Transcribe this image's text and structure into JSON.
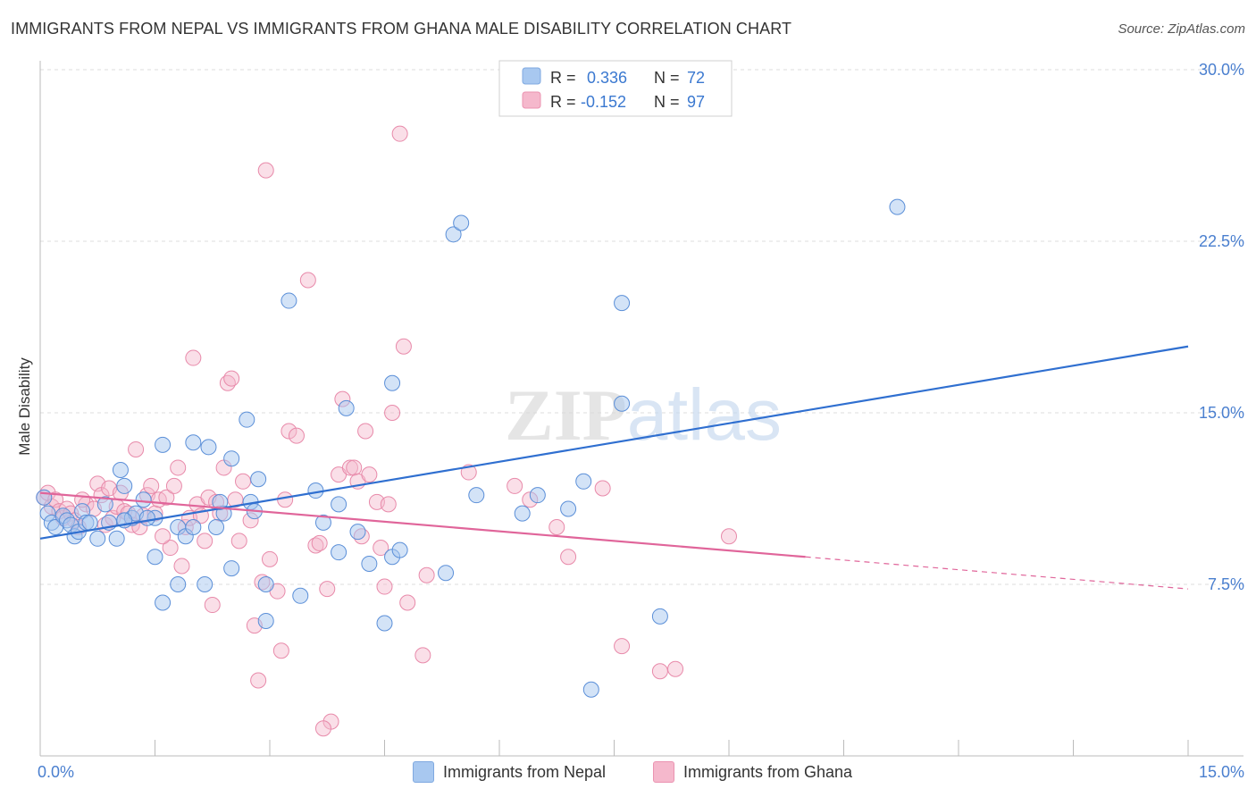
{
  "title": "IMMIGRANTS FROM NEPAL VS IMMIGRANTS FROM GHANA MALE DISABILITY CORRELATION CHART",
  "source": "Source: ZipAtlas.com",
  "colors": {
    "nepal_fill": "#a8c8f0",
    "nepal_line": "#2f6fd0",
    "ghana_fill": "#f5b8cc",
    "ghana_line": "#e0659a",
    "grid": "#dcdcdc",
    "tick_text": "#4a7fcf"
  },
  "legend": {
    "rows": [
      {
        "r_label": "R =",
        "r_value": "0.336",
        "n_label": "N =",
        "n_value": "72"
      },
      {
        "r_label": "R =",
        "r_value": "-0.152",
        "n_label": "N =",
        "n_value": "97"
      }
    ]
  },
  "bottom_legend": {
    "nepal": "Immigrants from Nepal",
    "ghana": "Immigrants from Ghana"
  },
  "chart_data": {
    "type": "scatter",
    "xlabel": "",
    "ylabel": "Male Disability",
    "xlim": [
      0,
      15
    ],
    "ylim": [
      0,
      30
    ],
    "x_tick_labels": [
      "0.0%",
      "15.0%"
    ],
    "y_ticks": [
      7.5,
      15,
      22.5,
      30
    ],
    "y_tick_labels": [
      "7.5%",
      "15.0%",
      "22.5%",
      "30.0%"
    ],
    "watermark": "ZIPatlas",
    "series": [
      {
        "name": "Immigrants from Nepal",
        "R": 0.336,
        "N": 72,
        "trend": {
          "x0": 0,
          "y0": 9.5,
          "x1": 15,
          "y1": 17.9
        },
        "points": [
          [
            0.05,
            11.3
          ],
          [
            0.1,
            10.6
          ],
          [
            0.15,
            10.2
          ],
          [
            0.2,
            10.0
          ],
          [
            0.3,
            10.5
          ],
          [
            0.35,
            10.3
          ],
          [
            0.4,
            10.1
          ],
          [
            0.45,
            9.6
          ],
          [
            0.5,
            9.8
          ],
          [
            0.55,
            10.7
          ],
          [
            0.6,
            10.2
          ],
          [
            0.75,
            9.5
          ],
          [
            0.85,
            11.0
          ],
          [
            0.9,
            10.2
          ],
          [
            1.1,
            10.3
          ],
          [
            1.1,
            11.8
          ],
          [
            1.05,
            12.5
          ],
          [
            1.0,
            9.5
          ],
          [
            1.2,
            10.4
          ],
          [
            1.25,
            10.6
          ],
          [
            1.35,
            11.2
          ],
          [
            1.5,
            8.7
          ],
          [
            1.5,
            10.4
          ],
          [
            1.6,
            13.6
          ],
          [
            1.6,
            6.7
          ],
          [
            1.8,
            10.0
          ],
          [
            1.8,
            7.5
          ],
          [
            1.9,
            9.6
          ],
          [
            2.0,
            10.0
          ],
          [
            2.0,
            13.7
          ],
          [
            2.15,
            7.5
          ],
          [
            2.2,
            13.5
          ],
          [
            2.4,
            10.6
          ],
          [
            2.35,
            11.1
          ],
          [
            2.3,
            10.0
          ],
          [
            2.5,
            13.0
          ],
          [
            2.5,
            8.2
          ],
          [
            2.7,
            14.7
          ],
          [
            2.75,
            11.1
          ],
          [
            2.85,
            12.1
          ],
          [
            2.95,
            7.5
          ],
          [
            2.95,
            5.9
          ],
          [
            3.25,
            19.9
          ],
          [
            3.4,
            7.0
          ],
          [
            3.6,
            11.6
          ],
          [
            3.7,
            10.2
          ],
          [
            3.9,
            8.9
          ],
          [
            3.9,
            11.0
          ],
          [
            4.0,
            15.2
          ],
          [
            4.15,
            9.8
          ],
          [
            4.3,
            8.4
          ],
          [
            4.5,
            5.8
          ],
          [
            4.6,
            16.3
          ],
          [
            4.6,
            8.7
          ],
          [
            4.7,
            9.0
          ],
          [
            5.3,
            8.0
          ],
          [
            5.4,
            22.8
          ],
          [
            5.5,
            23.3
          ],
          [
            5.7,
            11.4
          ],
          [
            6.3,
            10.6
          ],
          [
            6.5,
            11.4
          ],
          [
            6.9,
            10.8
          ],
          [
            7.1,
            12.0
          ],
          [
            7.2,
            2.9
          ],
          [
            7.6,
            19.8
          ],
          [
            7.6,
            15.4
          ],
          [
            8.1,
            6.1
          ],
          [
            11.2,
            24.0
          ],
          [
            1.1,
            10.3
          ],
          [
            0.65,
            10.2
          ],
          [
            2.8,
            10.7
          ],
          [
            1.4,
            10.4
          ]
        ]
      },
      {
        "name": "Immigrants from Ghana",
        "R": -0.152,
        "N": 97,
        "trend": {
          "x0": 0,
          "y0": 11.5,
          "x1": 10.0,
          "y1": 8.7,
          "dash_to_x": 15,
          "dash_to_y": 7.3
        },
        "points": [
          [
            0.05,
            11.3
          ],
          [
            0.1,
            11.5
          ],
          [
            0.15,
            10.9
          ],
          [
            0.2,
            11.2
          ],
          [
            0.25,
            10.7
          ],
          [
            0.3,
            10.4
          ],
          [
            0.35,
            10.8
          ],
          [
            0.4,
            10.6
          ],
          [
            0.45,
            10.3
          ],
          [
            0.5,
            10.0
          ],
          [
            0.6,
            11.0
          ],
          [
            0.7,
            10.8
          ],
          [
            0.75,
            11.9
          ],
          [
            0.8,
            11.4
          ],
          [
            0.85,
            10.1
          ],
          [
            0.9,
            11.7
          ],
          [
            0.95,
            10.4
          ],
          [
            1.0,
            10.9
          ],
          [
            1.05,
            11.5
          ],
          [
            1.1,
            10.7
          ],
          [
            1.15,
            10.6
          ],
          [
            1.2,
            10.1
          ],
          [
            1.3,
            10.0
          ],
          [
            1.35,
            10.5
          ],
          [
            1.4,
            11.4
          ],
          [
            1.45,
            11.8
          ],
          [
            1.5,
            10.6
          ],
          [
            1.55,
            11.2
          ],
          [
            1.65,
            11.3
          ],
          [
            1.7,
            9.1
          ],
          [
            1.75,
            11.8
          ],
          [
            1.8,
            12.6
          ],
          [
            1.85,
            8.3
          ],
          [
            1.9,
            10.0
          ],
          [
            1.95,
            10.4
          ],
          [
            2.0,
            17.4
          ],
          [
            2.05,
            11.0
          ],
          [
            2.1,
            10.5
          ],
          [
            2.15,
            9.4
          ],
          [
            2.2,
            11.3
          ],
          [
            2.25,
            6.6
          ],
          [
            2.3,
            11.1
          ],
          [
            2.35,
            10.6
          ],
          [
            2.45,
            16.3
          ],
          [
            2.5,
            16.5
          ],
          [
            2.55,
            11.2
          ],
          [
            2.6,
            9.4
          ],
          [
            2.65,
            12.0
          ],
          [
            2.75,
            10.3
          ],
          [
            2.8,
            5.7
          ],
          [
            2.85,
            3.3
          ],
          [
            2.9,
            7.6
          ],
          [
            2.95,
            25.6
          ],
          [
            3.0,
            8.6
          ],
          [
            3.1,
            7.2
          ],
          [
            3.15,
            4.6
          ],
          [
            3.2,
            11.2
          ],
          [
            3.25,
            14.2
          ],
          [
            3.35,
            14.0
          ],
          [
            3.5,
            20.8
          ],
          [
            3.6,
            9.2
          ],
          [
            3.65,
            9.3
          ],
          [
            3.75,
            7.3
          ],
          [
            3.8,
            1.5
          ],
          [
            3.9,
            12.3
          ],
          [
            3.95,
            15.6
          ],
          [
            4.05,
            12.6
          ],
          [
            4.1,
            12.6
          ],
          [
            4.15,
            12.0
          ],
          [
            4.2,
            9.6
          ],
          [
            4.25,
            14.2
          ],
          [
            4.3,
            12.3
          ],
          [
            4.4,
            11.1
          ],
          [
            4.45,
            9.1
          ],
          [
            4.5,
            7.4
          ],
          [
            4.55,
            11.0
          ],
          [
            4.6,
            15.0
          ],
          [
            4.7,
            27.2
          ],
          [
            4.75,
            17.9
          ],
          [
            4.8,
            6.7
          ],
          [
            5.0,
            4.4
          ],
          [
            5.05,
            7.9
          ],
          [
            5.6,
            12.4
          ],
          [
            6.2,
            11.8
          ],
          [
            6.4,
            11.2
          ],
          [
            6.75,
            10.0
          ],
          [
            6.9,
            8.7
          ],
          [
            7.35,
            11.7
          ],
          [
            7.6,
            4.8
          ],
          [
            8.1,
            3.7
          ],
          [
            8.3,
            3.8
          ],
          [
            9.0,
            9.6
          ],
          [
            3.7,
            1.2
          ],
          [
            1.6,
            9.6
          ],
          [
            0.55,
            11.2
          ],
          [
            1.25,
            13.4
          ],
          [
            2.4,
            12.6
          ]
        ]
      }
    ]
  }
}
